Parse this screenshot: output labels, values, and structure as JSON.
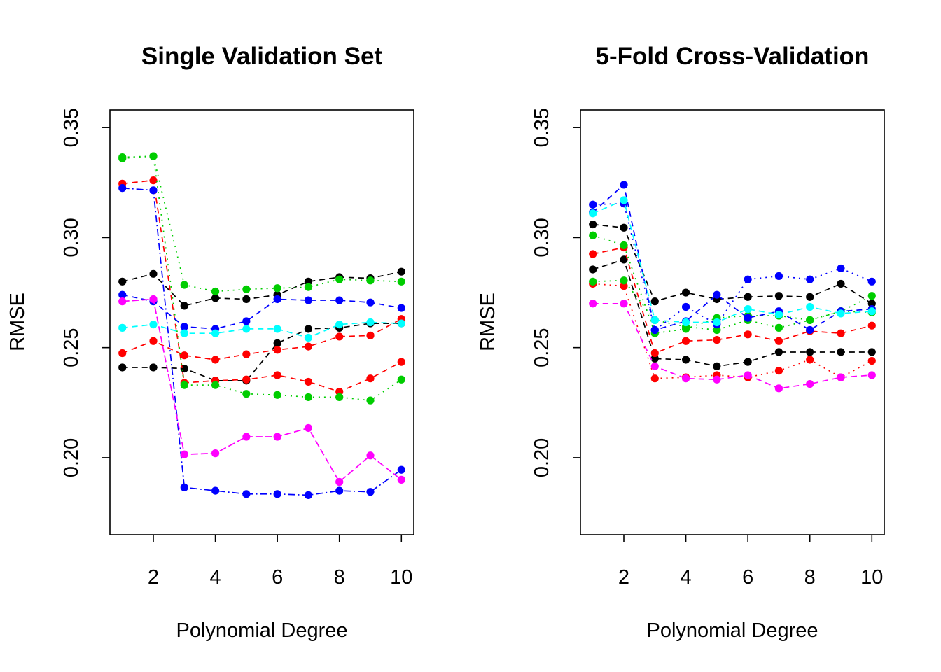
{
  "chart_data": [
    {
      "type": "line",
      "title": "Single Validation Set",
      "xlabel": "Polynomial Degree",
      "ylabel": "RMSE",
      "xlim": [
        0.6,
        10.4
      ],
      "ylim": [
        0.165,
        0.358
      ],
      "x_ticks": [
        2,
        4,
        6,
        8,
        10
      ],
      "y_ticks": [
        0.2,
        0.25,
        0.3,
        0.35
      ],
      "x": [
        1,
        2,
        3,
        4,
        5,
        6,
        7,
        8,
        9,
        10
      ],
      "series": [
        {
          "color": "#000000",
          "dash": "8,6",
          "values": [
            0.28,
            0.2835,
            0.269,
            0.2725,
            0.272,
            0.274,
            0.28,
            0.282,
            0.2815,
            0.2845
          ]
        },
        {
          "color": "#000000",
          "dash": "8,6",
          "values": [
            0.241,
            0.241,
            0.2405,
            0.235,
            0.235,
            0.252,
            0.2585,
            0.259,
            0.261,
            0.261
          ]
        },
        {
          "color": "#ff0000",
          "dash": "8,6",
          "values": [
            0.2475,
            0.253,
            0.2465,
            0.2445,
            0.247,
            0.249,
            0.2505,
            0.255,
            0.2555,
            0.263
          ]
        },
        {
          "color": "#ff0000",
          "dash": "8,6",
          "values": [
            0.3245,
            0.326,
            0.234,
            0.235,
            0.2355,
            0.2375,
            0.2345,
            0.23,
            0.236,
            0.2435
          ]
        },
        {
          "color": "#00cd00",
          "dash": "2,6",
          "values": [
            0.3365,
            0.337,
            0.2785,
            0.2755,
            0.2765,
            0.277,
            0.2775,
            0.281,
            0.2805,
            0.28
          ]
        },
        {
          "color": "#00cd00",
          "dash": "2,6",
          "values": [
            0.336,
            0.337,
            0.233,
            0.233,
            0.229,
            0.2285,
            0.2275,
            0.2275,
            0.226,
            0.2355
          ]
        },
        {
          "color": "#0000ff",
          "dash": "8,6",
          "values": [
            0.274,
            0.271,
            0.2595,
            0.2585,
            0.262,
            0.272,
            0.2715,
            0.2715,
            0.2705,
            0.268
          ]
        },
        {
          "color": "#0000ff",
          "dash": "10,4,2,4",
          "values": [
            0.3225,
            0.3215,
            0.1865,
            0.185,
            0.1835,
            0.1835,
            0.183,
            0.185,
            0.1845,
            0.1945
          ]
        },
        {
          "color": "#00ffff",
          "dash": "8,6",
          "values": [
            0.259,
            0.2605,
            0.2565,
            0.2565,
            0.2585,
            0.2585,
            0.2545,
            0.2605,
            0.2615,
            0.261
          ]
        },
        {
          "color": "#ff00ff",
          "dash": "10,4",
          "values": [
            0.271,
            0.272,
            0.2015,
            0.202,
            0.2095,
            0.2095,
            0.2135,
            0.189,
            0.201,
            0.19
          ]
        }
      ]
    },
    {
      "type": "line",
      "title": "5-Fold Cross-Validation",
      "xlabel": "Polynomial Degree",
      "ylabel": "RMSE",
      "xlim": [
        0.6,
        10.4
      ],
      "ylim": [
        0.165,
        0.358
      ],
      "x_ticks": [
        2,
        4,
        6,
        8,
        10
      ],
      "y_ticks": [
        0.2,
        0.25,
        0.3,
        0.35
      ],
      "x": [
        1,
        2,
        3,
        4,
        5,
        6,
        7,
        8,
        9,
        10
      ],
      "series": [
        {
          "color": "#000000",
          "dash": "8,6",
          "values": [
            0.306,
            0.3045,
            0.271,
            0.275,
            0.272,
            0.273,
            0.2735,
            0.273,
            0.279,
            0.27
          ]
        },
        {
          "color": "#000000",
          "dash": "8,6",
          "values": [
            0.2855,
            0.29,
            0.245,
            0.2445,
            0.2415,
            0.2435,
            0.248,
            0.248,
            0.248,
            0.248
          ]
        },
        {
          "color": "#ff0000",
          "dash": "8,6",
          "values": [
            0.2925,
            0.2955,
            0.2475,
            0.253,
            0.2535,
            0.256,
            0.253,
            0.2575,
            0.2565,
            0.26
          ]
        },
        {
          "color": "#ff0000",
          "dash": "2,6",
          "values": [
            0.279,
            0.278,
            0.236,
            0.2365,
            0.2375,
            0.2365,
            0.2395,
            0.2445,
            0.2365,
            0.244
          ]
        },
        {
          "color": "#00cd00",
          "dash": "2,6",
          "values": [
            0.301,
            0.2965,
            0.2565,
            0.2585,
            0.2635,
            0.2645,
            0.2645,
            0.2625,
            0.2665,
            0.2735
          ]
        },
        {
          "color": "#00cd00",
          "dash": "2,6",
          "values": [
            0.28,
            0.2805,
            0.2625,
            0.2595,
            0.258,
            0.2625,
            0.259,
            0.2625,
            0.2665,
            0.266
          ]
        },
        {
          "color": "#0000ff",
          "dash": "8,6",
          "values": [
            0.3115,
            0.324,
            0.258,
            0.262,
            0.274,
            0.2635,
            0.2665,
            0.258,
            0.2665,
            0.2675
          ]
        },
        {
          "color": "#0000ff",
          "dash": "2,6",
          "values": [
            0.315,
            0.3155,
            0.258,
            0.2685,
            0.2605,
            0.281,
            0.2825,
            0.281,
            0.286,
            0.28
          ]
        },
        {
          "color": "#00ffff",
          "dash": "8,6",
          "values": [
            0.311,
            0.317,
            0.2625,
            0.2615,
            0.2615,
            0.2675,
            0.265,
            0.2685,
            0.2655,
            0.2665
          ]
        },
        {
          "color": "#ff00ff",
          "dash": "8,6",
          "values": [
            0.27,
            0.27,
            0.2415,
            0.236,
            0.2355,
            0.2375,
            0.2315,
            0.2335,
            0.2365,
            0.2375
          ]
        }
      ]
    }
  ]
}
